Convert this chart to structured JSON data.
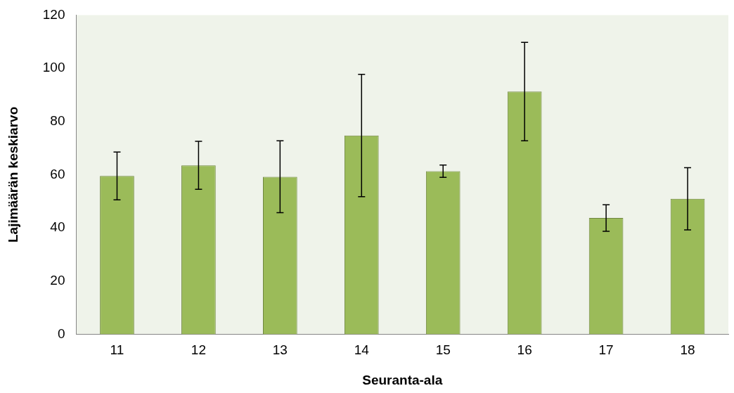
{
  "chart_data": {
    "type": "bar",
    "xlabel": "Seuranta-ala",
    "ylabel": "Lajimäärän keskiarvo",
    "categories": [
      "11",
      "12",
      "13",
      "14",
      "15",
      "16",
      "17",
      "18"
    ],
    "values": [
      59.5,
      63.5,
      59.2,
      74.7,
      61.3,
      91.2,
      43.7,
      50.9
    ],
    "errors": [
      9,
      9,
      13.5,
      23,
      2.3,
      18.5,
      5,
      11.7
    ],
    "color": "#9bbb59",
    "ylim": [
      0,
      120
    ],
    "yticks": [
      0,
      20,
      40,
      60,
      80,
      100,
      120
    ],
    "grid": false,
    "legend": false
  }
}
